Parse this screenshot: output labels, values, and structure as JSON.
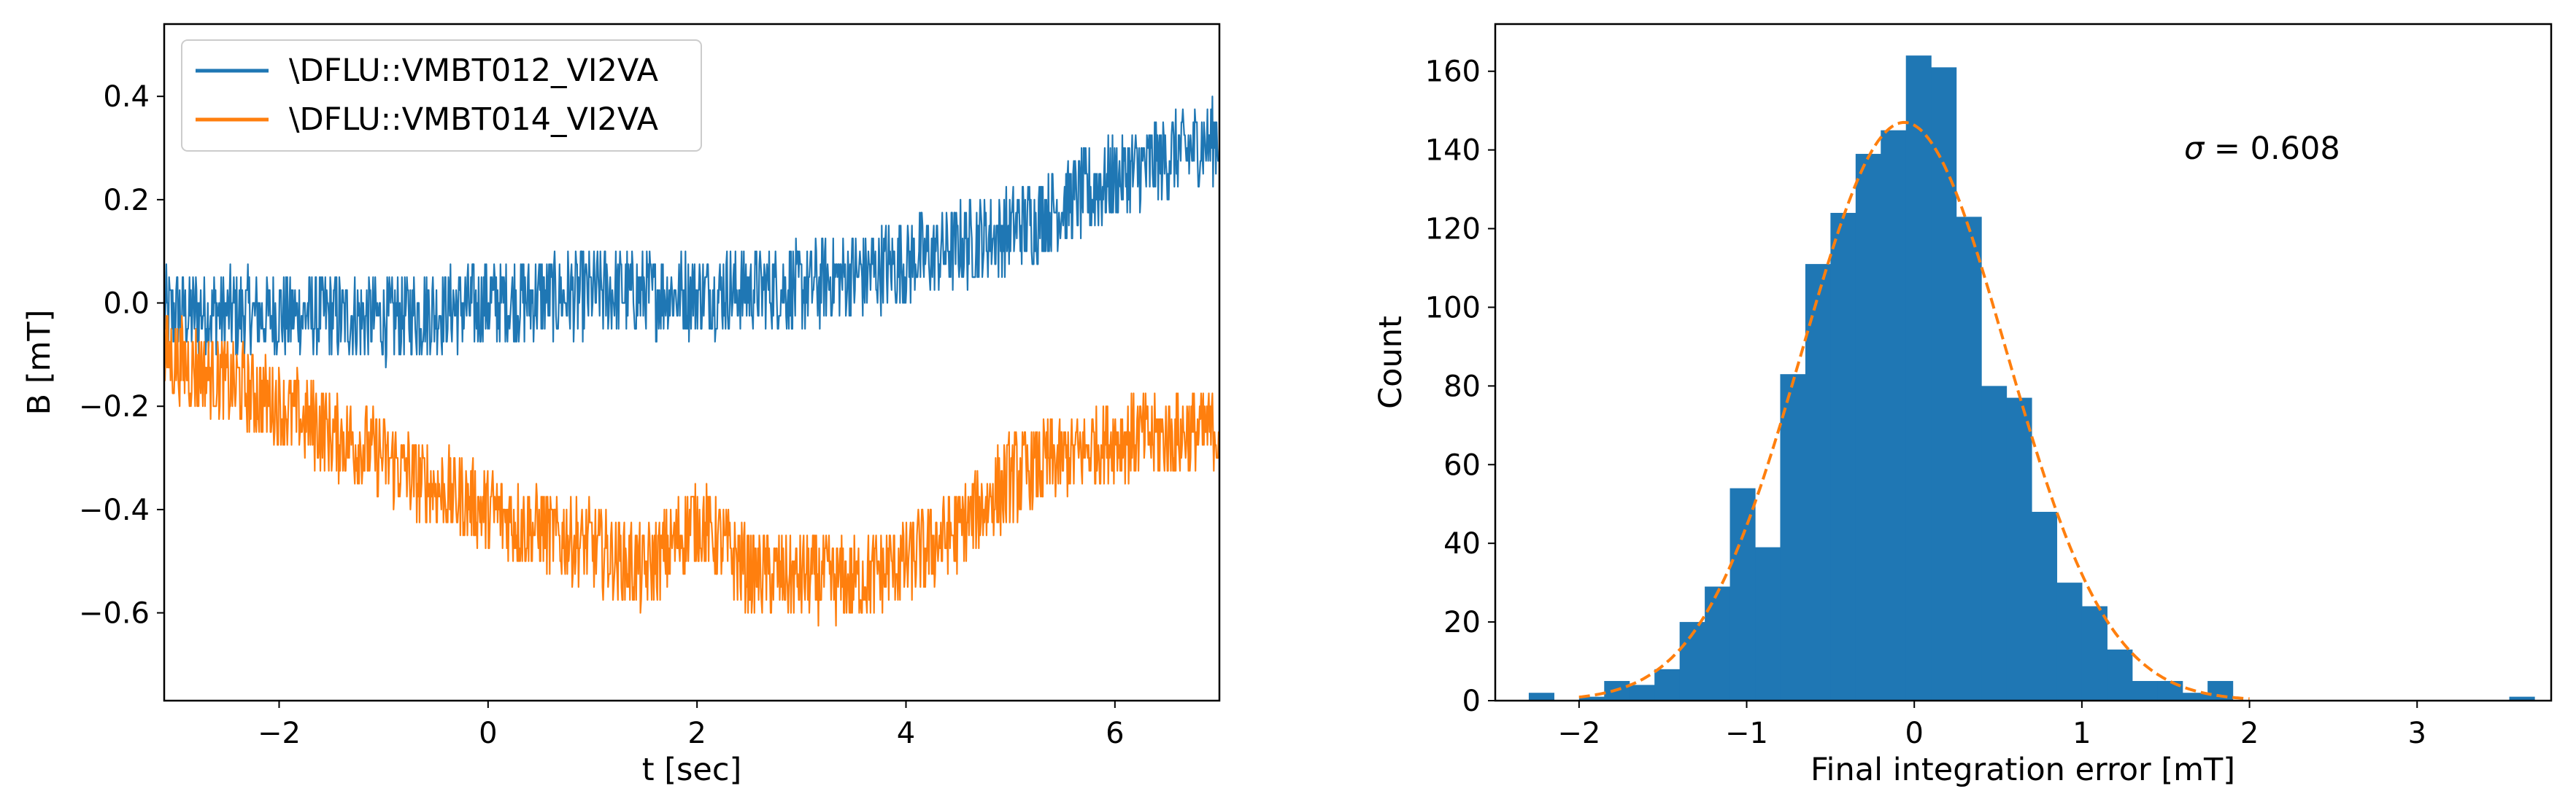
{
  "colors": {
    "series1": "#1f77b4",
    "series2": "#ff7f0e",
    "hist": "#1f77b4",
    "fit": "#ff7f0e"
  },
  "chart_data": [
    {
      "type": "line",
      "xlabel": "t [sec]",
      "ylabel": "B [mT]",
      "xlim": [
        -3.1,
        7.0
      ],
      "ylim": [
        -0.77,
        0.54
      ],
      "xticks": [
        -2,
        0,
        2,
        4,
        6
      ],
      "yticks": [
        -0.6,
        -0.4,
        -0.2,
        0.0,
        0.2,
        0.4
      ],
      "xtick_labels": [
        "−2",
        "0",
        "2",
        "4",
        "6"
      ],
      "ytick_labels": [
        "−0.6",
        "−0.4",
        "−0.2",
        "0.0",
        "0.2",
        "0.4"
      ],
      "legend_position": "top-left",
      "noise_half_width_mT": 0.085,
      "series": [
        {
          "name": "\\DFLU::VMBT012_VI2VA",
          "color": "#1f77b4",
          "x": [
            -3.1,
            -2.5,
            -2.0,
            -1.0,
            0.0,
            1.0,
            2.0,
            3.0,
            4.0,
            5.0,
            6.0,
            7.0
          ],
          "trend": [
            -0.02,
            -0.02,
            -0.02,
            -0.03,
            0.0,
            0.02,
            0.02,
            0.03,
            0.08,
            0.14,
            0.24,
            0.32
          ]
        },
        {
          "name": "\\DFLU::VMBT014_VI2VA",
          "color": "#ff7f0e",
          "x": [
            -3.1,
            -2.5,
            -2.0,
            -1.0,
            -0.5,
            0.0,
            0.5,
            1.0,
            1.5,
            2.0,
            2.5,
            3.0,
            3.5,
            4.0,
            4.5,
            5.0,
            5.5,
            6.0,
            6.5,
            7.0
          ],
          "trend": [
            -0.1,
            -0.15,
            -0.2,
            -0.3,
            -0.36,
            -0.4,
            -0.44,
            -0.47,
            -0.52,
            -0.42,
            -0.52,
            -0.53,
            -0.54,
            -0.5,
            -0.44,
            -0.34,
            -0.3,
            -0.26,
            -0.26,
            -0.24
          ]
        }
      ]
    },
    {
      "type": "bar",
      "subtype": "histogram",
      "xlabel": "Final integration error [mT]",
      "ylabel": "Count",
      "xlim": [
        -2.5,
        3.8
      ],
      "ylim": [
        0,
        172
      ],
      "xticks": [
        -2,
        -1,
        0,
        1,
        2,
        3
      ],
      "yticks": [
        0,
        20,
        40,
        60,
        80,
        100,
        120,
        140,
        160
      ],
      "xtick_labels": [
        "−2",
        "−1",
        "0",
        "1",
        "2",
        "3"
      ],
      "ytick_labels": [
        "0",
        "20",
        "40",
        "60",
        "80",
        "100",
        "120",
        "140",
        "160"
      ],
      "bin_start": -2.3,
      "bin_width": 0.15,
      "counts": [
        2,
        0,
        1,
        5,
        4,
        8,
        20,
        29,
        54,
        39,
        83,
        111,
        124,
        139,
        145,
        164,
        161,
        123,
        80,
        77,
        48,
        30,
        24,
        13,
        5,
        5,
        2,
        5,
        0,
        0,
        0,
        0,
        0,
        0,
        0,
        0,
        0,
        0,
        0,
        1
      ],
      "fit": {
        "type": "gaussian",
        "mean": -0.06,
        "sigma": 0.608,
        "peak": 147,
        "x_range": [
          -2.0,
          2.0
        ]
      },
      "annotation": {
        "prefix": "σ",
        "suffix": " = 0.608"
      }
    }
  ]
}
